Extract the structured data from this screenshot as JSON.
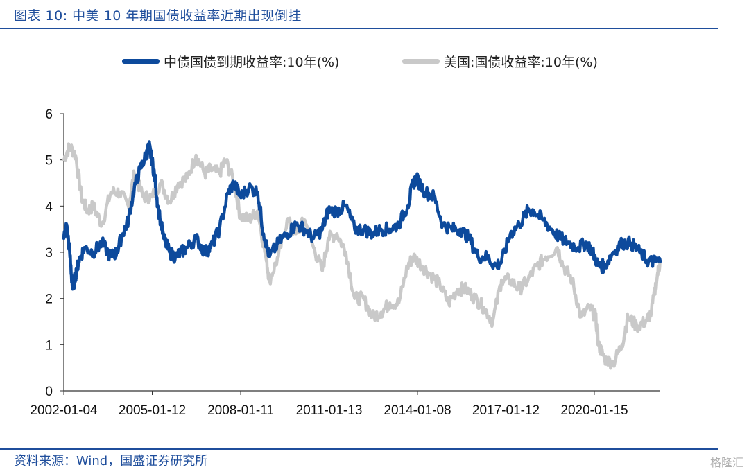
{
  "title": "图表 10:  中美 10 年期国债收益率近期出现倒挂",
  "source": "资料来源：Wind，国盛证券研究所",
  "watermark": "格隆汇",
  "chart_data": {
    "type": "line",
    "title": "",
    "xlabel": "",
    "ylabel": "",
    "ylim": [
      0,
      6
    ],
    "yticks": [
      "0",
      "1",
      "2",
      "3",
      "4",
      "5",
      "6"
    ],
    "xticks": [
      "2002-01-04",
      "2005-01-12",
      "2008-01-11",
      "2011-01-13",
      "2014-01-08",
      "2017-01-12",
      "2020-01-15"
    ],
    "xlim": [
      2002.0,
      2022.3
    ],
    "legend_position": "top",
    "grid": false,
    "series": [
      {
        "name": "中债国债到期收益率:10年(%)",
        "color": "#0d4a9c",
        "x": [
          2002.0,
          2002.1,
          2002.2,
          2002.3,
          2002.4,
          2002.5,
          2002.7,
          2003.0,
          2003.3,
          2003.6,
          2003.8,
          2004.0,
          2004.2,
          2004.4,
          2004.6,
          2004.8,
          2004.9,
          2005.0,
          2005.1,
          2005.2,
          2005.4,
          2005.6,
          2005.8,
          2006.0,
          2006.2,
          2006.5,
          2006.8,
          2007.0,
          2007.3,
          2007.6,
          2007.8,
          2008.0,
          2008.3,
          2008.6,
          2008.8,
          2009.0,
          2009.3,
          2009.6,
          2009.9,
          2010.2,
          2010.5,
          2010.8,
          2011.0,
          2011.3,
          2011.6,
          2011.9,
          2012.2,
          2012.5,
          2012.8,
          2013.1,
          2013.4,
          2013.7,
          2013.9,
          2014.0,
          2014.3,
          2014.6,
          2014.9,
          2015.2,
          2015.5,
          2015.8,
          2016.1,
          2016.4,
          2016.7,
          2016.9,
          2017.2,
          2017.5,
          2017.8,
          2018.0,
          2018.3,
          2018.6,
          2018.9,
          2019.2,
          2019.5,
          2019.8,
          2020.0,
          2020.2,
          2020.4,
          2020.7,
          2021.0,
          2021.3,
          2021.6,
          2021.9,
          2022.1,
          2022.3
        ],
        "values": [
          3.3,
          3.6,
          3.0,
          2.2,
          2.5,
          2.8,
          3.1,
          3.0,
          3.2,
          2.9,
          3.0,
          3.4,
          3.7,
          4.4,
          4.8,
          5.1,
          5.3,
          5.0,
          4.6,
          4.0,
          3.3,
          3.0,
          2.9,
          3.0,
          3.1,
          3.3,
          3.0,
          3.1,
          3.5,
          4.3,
          4.5,
          4.2,
          4.4,
          4.3,
          3.4,
          2.9,
          3.2,
          3.4,
          3.6,
          3.5,
          3.3,
          3.5,
          3.9,
          3.9,
          4.0,
          3.5,
          3.5,
          3.4,
          3.5,
          3.5,
          3.6,
          4.0,
          4.5,
          4.6,
          4.3,
          4.2,
          3.6,
          3.5,
          3.5,
          3.3,
          2.9,
          2.9,
          2.7,
          2.8,
          3.4,
          3.6,
          3.9,
          3.9,
          3.7,
          3.5,
          3.3,
          3.2,
          3.1,
          3.2,
          3.0,
          2.7,
          2.7,
          3.0,
          3.2,
          3.2,
          3.0,
          2.8,
          2.8,
          2.8
        ]
      },
      {
        "name": "美国:国债收益率:10年(%)",
        "color": "#c9c9c9",
        "x": [
          2002.0,
          2002.2,
          2002.4,
          2002.6,
          2002.8,
          2003.0,
          2003.3,
          2003.6,
          2003.9,
          2004.2,
          2004.4,
          2004.7,
          2005.0,
          2005.3,
          2005.6,
          2005.9,
          2006.2,
          2006.5,
          2006.8,
          2007.0,
          2007.3,
          2007.5,
          2007.8,
          2008.0,
          2008.3,
          2008.6,
          2008.9,
          2009.0,
          2009.3,
          2009.6,
          2009.9,
          2010.2,
          2010.5,
          2010.8,
          2011.0,
          2011.3,
          2011.6,
          2011.9,
          2012.2,
          2012.5,
          2012.8,
          2013.1,
          2013.4,
          2013.7,
          2013.9,
          2014.2,
          2014.5,
          2014.8,
          2015.1,
          2015.4,
          2015.7,
          2016.0,
          2016.3,
          2016.6,
          2016.9,
          2017.2,
          2017.5,
          2017.8,
          2018.1,
          2018.4,
          2018.8,
          2019.0,
          2019.3,
          2019.6,
          2019.9,
          2020.1,
          2020.2,
          2020.4,
          2020.7,
          2021.0,
          2021.2,
          2021.5,
          2021.8,
          2022.0,
          2022.2,
          2022.3
        ],
        "values": [
          5.0,
          5.3,
          5.1,
          4.2,
          3.9,
          4.0,
          3.6,
          4.3,
          4.3,
          4.0,
          4.7,
          4.2,
          4.2,
          4.5,
          4.1,
          4.5,
          4.6,
          5.1,
          4.7,
          4.8,
          4.7,
          5.0,
          4.5,
          3.8,
          3.7,
          3.9,
          2.8,
          2.4,
          2.9,
          3.7,
          3.4,
          3.7,
          3.1,
          2.6,
          3.3,
          3.4,
          3.0,
          2.0,
          2.0,
          1.6,
          1.7,
          1.9,
          1.9,
          2.7,
          2.9,
          2.7,
          2.5,
          2.3,
          1.9,
          2.2,
          2.2,
          2.0,
          1.8,
          1.5,
          2.4,
          2.4,
          2.2,
          2.4,
          2.7,
          2.9,
          3.1,
          2.7,
          2.4,
          1.6,
          1.8,
          1.6,
          1.0,
          0.7,
          0.6,
          1.0,
          1.6,
          1.4,
          1.5,
          1.7,
          2.5,
          2.8
        ]
      }
    ]
  }
}
